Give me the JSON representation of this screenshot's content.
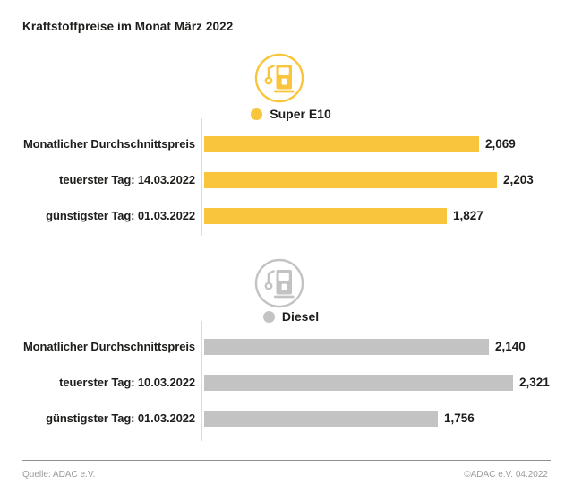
{
  "title": "Kraftstoffpreise im Monat März 2022",
  "colors": {
    "super_e10": "#F9C53D",
    "diesel": "#C3C3C3",
    "text": "#1D1D1B",
    "axis_line": "#DCDCDC",
    "footer_text": "#9B9B9B"
  },
  "footer": {
    "source": "Quelle: ADAC e.V.",
    "copyright": "©ADAC e.V. 04.2022"
  },
  "chart_data": {
    "type": "bar",
    "orientation": "horizontal",
    "title": "Kraftstoffpreise im Monat März 2022",
    "xlabel": "",
    "ylabel": "",
    "xlim": [
      0,
      2.4
    ],
    "grid": false,
    "legend_position": "above-each-group",
    "groups": [
      {
        "name": "Super E10",
        "color": "#F9C53D",
        "icon": "fuel-pump-icon",
        "categories": [
          "Monatlicher Durchschnittspreis",
          "teuerster Tag: 14.03.2022",
          "günstigster Tag: 01.03.2022"
        ],
        "values": [
          2.069,
          2.203,
          1.827
        ],
        "value_labels": [
          "2,069",
          "2,203",
          "1,827"
        ]
      },
      {
        "name": "Diesel",
        "color": "#C3C3C3",
        "icon": "fuel-pump-icon",
        "categories": [
          "Monatlicher Durchschnittspreis",
          "teuerster Tag: 10.03.2022",
          "günstigster Tag: 01.03.2022"
        ],
        "values": [
          2.14,
          2.321,
          1.756
        ],
        "value_labels": [
          "2,140",
          "2,321",
          "1,756"
        ]
      }
    ]
  }
}
